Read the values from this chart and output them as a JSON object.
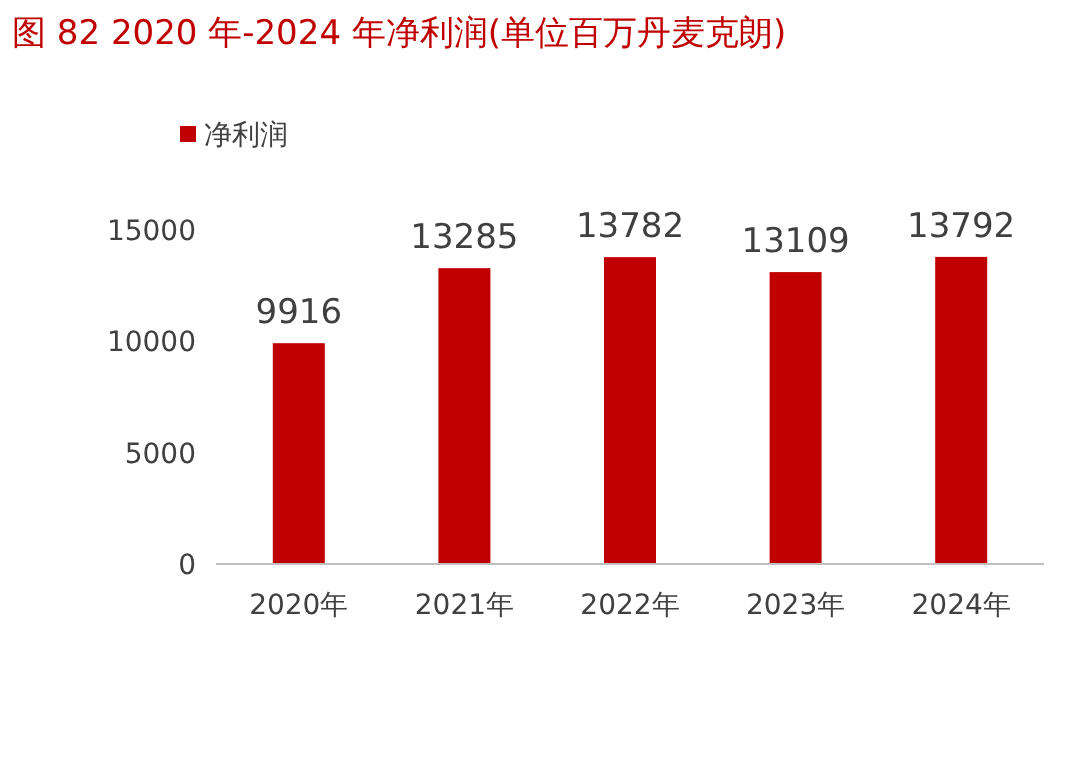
{
  "chart_data": {
    "type": "bar",
    "title": "图 82   2020 年-2024 年净利润(单位百万丹麦克朗)",
    "categories": [
      "2020年",
      "2021年",
      "2022年",
      "2023年",
      "2024年"
    ],
    "series": [
      {
        "name": "净利润",
        "color": "#c00000",
        "values": [
          9916,
          13285,
          13782,
          13109,
          13792
        ]
      }
    ],
    "ylim": [
      0,
      15000
    ],
    "yticks": [
      0,
      5000,
      10000,
      15000
    ],
    "grid": false,
    "legend": "top left",
    "data_labels": true
  }
}
